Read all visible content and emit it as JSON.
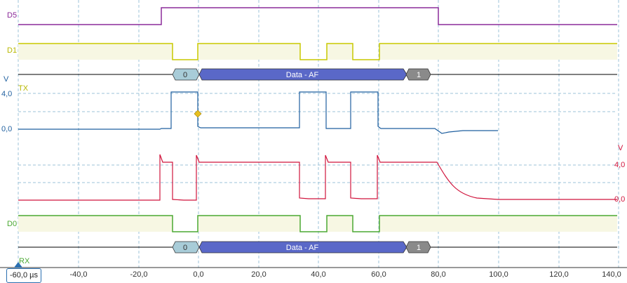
{
  "channels": {
    "d5": {
      "label": "D5",
      "color": "#8b2b9a"
    },
    "d1": {
      "label": "D1",
      "color": "#c9c900"
    },
    "d0": {
      "label": "D0",
      "color": "#4aa832"
    },
    "tx": {
      "label": "TX",
      "color": "#c9c900"
    },
    "rx": {
      "label": "RX",
      "color": "#4aa832"
    }
  },
  "analog": {
    "blue": {
      "color": "#1f5f9f",
      "unit": "V",
      "ticks": [
        "4,0",
        "0,0"
      ]
    },
    "red": {
      "color": "#d0143c",
      "unit": "V",
      "ticks": [
        "4,0",
        "0,0"
      ]
    }
  },
  "decode_tx": {
    "seg1": "0",
    "seg2": "Data - AF",
    "seg3": "1"
  },
  "decode_rx": {
    "seg1": "0",
    "seg2": "Data - AF",
    "seg3": "1"
  },
  "time_axis": {
    "ticks": [
      "-40,0",
      "-20,0",
      "0,0",
      "20,0",
      "40,0",
      "60,0",
      "80,0",
      "100,0",
      "120,0",
      "140,0"
    ],
    "offset_label": "-60,0 µs"
  },
  "colors": {
    "grid": "#9ec3d8",
    "decode_fill": "#5a68c8",
    "decode_side": "#a8ccd8",
    "decode_end": "#8a8a8a"
  }
}
